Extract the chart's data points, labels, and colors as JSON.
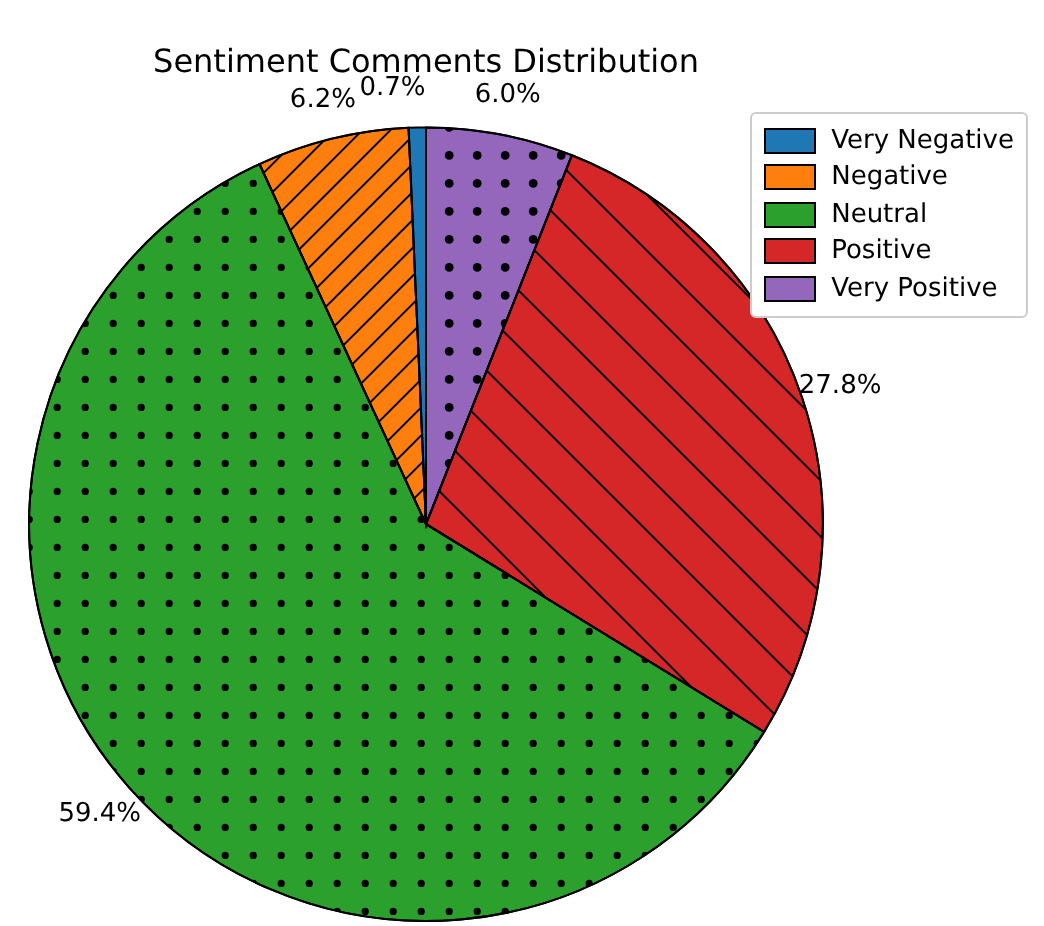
{
  "chart_data": {
    "type": "pie",
    "title": "Sentiment Comments Distribution",
    "categories": [
      "Very Negative",
      "Negative",
      "Neutral",
      "Positive",
      "Very Positive"
    ],
    "values": [
      0.7,
      6.2,
      59.4,
      27.8,
      6.0
    ],
    "value_labels": [
      "0.7%",
      "6.2%",
      "59.4%",
      "27.8%",
      "6.0%"
    ],
    "colors": [
      "#1f77b4",
      "#ff7f0e",
      "#2ca02c",
      "#d62728",
      "#9467bd"
    ],
    "legend": "top right"
  }
}
